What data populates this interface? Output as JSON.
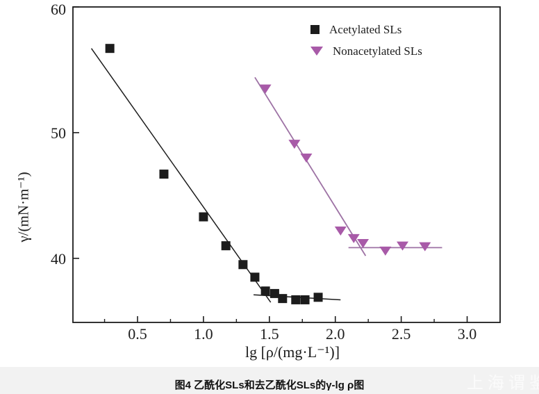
{
  "figure": {
    "caption": "图4  乙酰化SLs和去乙酰化SLs的γ-lg ρ图",
    "watermark": "上海谓鉴"
  },
  "colors": {
    "axis": "#1c1c1c",
    "acetylated": "#1c1c1c",
    "nonacetylated_marker": "#a85aa8",
    "nonacetylated_line": "#9d72a4",
    "caption_bar_bg": "#f2f2f2"
  },
  "chart_data": {
    "type": "scatter",
    "title": "",
    "xlabel": "lg [ρ/(mg·L⁻¹)]",
    "ylabel": "γ/(mN·m⁻¹)",
    "xlim": [
      0.01,
      3.25
    ],
    "ylim": [
      34.9,
      60
    ],
    "grid": false,
    "legend_position": "top-right",
    "x_major_ticks": {
      "values": [
        0.5,
        1.0,
        1.5,
        2.0,
        2.5,
        3.0
      ],
      "labels": [
        "0.5",
        "1.0",
        "1.5",
        "2.0",
        "2.5",
        "3.0"
      ]
    },
    "x_minor_ticks": [
      0.25,
      0.75,
      1.25,
      1.75,
      2.25,
      2.75
    ],
    "y_major_ticks": {
      "values": [
        40,
        50,
        60
      ],
      "labels": [
        "40",
        "50",
        "60"
      ]
    },
    "series": [
      {
        "name": "Acetylated SLs",
        "marker": "square",
        "color": "#1c1c1c",
        "points": [
          [
            0.29,
            56.7
          ],
          [
            0.7,
            46.7
          ],
          [
            1.0,
            43.3
          ],
          [
            1.17,
            41.0
          ],
          [
            1.3,
            39.5
          ],
          [
            1.39,
            38.5
          ],
          [
            1.47,
            37.4
          ],
          [
            1.54,
            37.2
          ],
          [
            1.6,
            36.8
          ],
          [
            1.7,
            36.7
          ],
          [
            1.77,
            36.7
          ],
          [
            1.87,
            36.9
          ]
        ]
      },
      {
        "name": "Nonacetylated SLs",
        "marker": "triangle-down",
        "color": "#a85aa8",
        "points": [
          [
            1.47,
            53.5
          ],
          [
            1.69,
            49.1
          ],
          [
            1.78,
            48.0
          ],
          [
            2.04,
            42.2
          ],
          [
            2.14,
            41.6
          ],
          [
            2.21,
            41.2
          ],
          [
            2.38,
            40.6
          ],
          [
            2.51,
            41.0
          ],
          [
            2.68,
            40.95
          ]
        ]
      }
    ],
    "fit_lines": [
      {
        "series": "Acetylated SLs",
        "color": "#1c1c1c",
        "width": 1.5,
        "from": [
          0.15,
          56.7
        ],
        "to": [
          1.51,
          36.5
        ]
      },
      {
        "series": "Acetylated SLs",
        "color": "#1c1c1c",
        "width": 1.5,
        "from": [
          1.38,
          37.1
        ],
        "to": [
          2.04,
          36.7
        ]
      },
      {
        "series": "Nonacetylated SLs",
        "color": "#9d72a4",
        "width": 1.8,
        "from": [
          1.39,
          54.4
        ],
        "to": [
          2.23,
          40.2
        ]
      },
      {
        "series": "Nonacetylated SLs",
        "color": "#9d72a4",
        "width": 1.8,
        "from": [
          2.1,
          40.85
        ],
        "to": [
          2.81,
          40.85
        ]
      }
    ]
  }
}
